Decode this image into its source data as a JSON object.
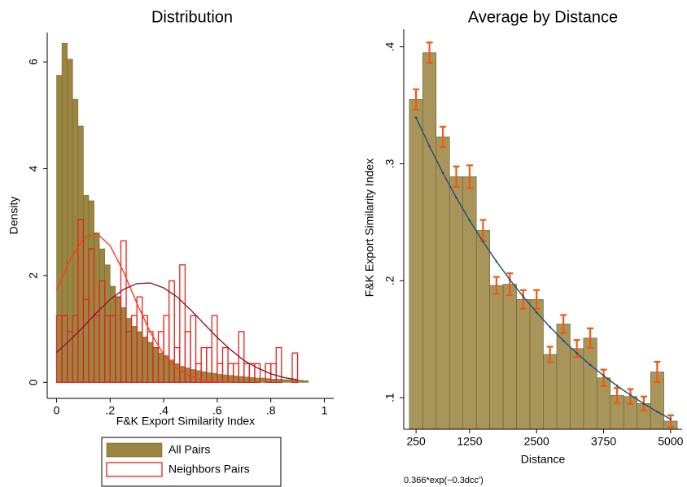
{
  "chart_data": [
    {
      "type": "histogram",
      "title": "Distribution",
      "xlabel": "F&K Export Similarity Index",
      "ylabel": "Density",
      "xlim": [
        -0.035,
        1.035
      ],
      "ylim": [
        -0.3,
        6.55
      ],
      "xticks": [
        0,
        {
          "value": 0.2,
          "label": ".2"
        },
        {
          "value": 0.4,
          "label": ".4"
        },
        {
          "value": 0.6,
          "label": ".6"
        },
        {
          "value": 0.8,
          "label": ".8"
        },
        1
      ],
      "yticks": [
        0,
        2,
        4,
        6
      ],
      "legend": "bottom",
      "series": [
        {
          "name": "All Pairs",
          "color": "#9a8642",
          "edgecolor": "#7a6a2e",
          "filled": true,
          "bins": [
            0,
            0.02,
            0.04,
            0.06,
            0.08,
            0.1,
            0.12,
            0.14,
            0.16,
            0.18,
            0.2,
            0.22,
            0.24,
            0.26,
            0.28,
            0.3,
            0.32,
            0.34,
            0.36,
            0.38,
            0.4,
            0.42,
            0.44,
            0.46,
            0.48,
            0.5,
            0.52,
            0.54,
            0.56,
            0.58,
            0.6,
            0.62,
            0.64,
            0.66,
            0.68,
            0.7,
            0.72,
            0.74,
            0.76,
            0.78,
            0.8,
            0.82,
            0.84,
            0.86,
            0.88,
            0.9,
            0.92,
            0.94
          ],
          "values": [
            5.75,
            6.35,
            6.05,
            5.3,
            4.8,
            3.5,
            3.4,
            2.8,
            2.5,
            2.2,
            1.8,
            1.6,
            1.4,
            1.2,
            1.05,
            0.95,
            0.85,
            0.75,
            0.65,
            0.55,
            0.5,
            0.42,
            0.35,
            0.3,
            0.27,
            0.24,
            0.22,
            0.2,
            0.18,
            0.17,
            0.15,
            0.14,
            0.13,
            0.12,
            0.11,
            0.1,
            0.09,
            0.08,
            0.08,
            0.07,
            0.06,
            0.06,
            0.05,
            0.05,
            0.04,
            0.04,
            0.03
          ]
        },
        {
          "name": "Neighbors Pairs",
          "color": "#e8201a",
          "edgecolor": "#e8201a",
          "filled": false,
          "bins": [
            0,
            0.02,
            0.04,
            0.06,
            0.08,
            0.1,
            0.12,
            0.14,
            0.16,
            0.18,
            0.2,
            0.22,
            0.24,
            0.26,
            0.28,
            0.3,
            0.32,
            0.34,
            0.36,
            0.38,
            0.4,
            0.42,
            0.44,
            0.46,
            0.48,
            0.5,
            0.52,
            0.54,
            0.56,
            0.58,
            0.6,
            0.62,
            0.64,
            0.66,
            0.68,
            0.7,
            0.72,
            0.74,
            0.76,
            0.78,
            0.8,
            0.82,
            0.84,
            0.86,
            0.88,
            0.9,
            0.92
          ],
          "values": [
            1.25,
            1.25,
            0.95,
            1.25,
            3.05,
            1.55,
            2.5,
            1.25,
            1.9,
            1.25,
            1.25,
            1.6,
            2.65,
            0.95,
            1.25,
            1.6,
            1.25,
            0.95,
            0.65,
            0.95,
            1.25,
            1.9,
            0.65,
            2.2,
            0.95,
            1.25,
            0.35,
            0.65,
            0.65,
            1.25,
            0.35,
            0.65,
            0.35,
            0.35,
            0.95,
            0.35,
            0.35,
            0.35,
            0,
            0.35,
            0.35,
            0.65,
            0,
            0,
            0.55,
            0
          ]
        }
      ],
      "curves": [
        {
          "color": "#ff3b1a",
          "x": [
            0,
            0.05,
            0.1,
            0.15,
            0.2,
            0.25,
            0.3,
            0.35,
            0.4,
            0.45,
            0.5,
            0.55,
            0.6,
            0.65
          ],
          "values": [
            1.72,
            2.29,
            2.69,
            2.79,
            2.56,
            2.07,
            1.48,
            0.94,
            0.52,
            0.26,
            0.11,
            0.04,
            0.01,
            0.0
          ]
        },
        {
          "color": "#8b1a2a",
          "x": [
            0,
            0.05,
            0.1,
            0.15,
            0.2,
            0.25,
            0.3,
            0.35,
            0.4,
            0.45,
            0.5,
            0.55,
            0.6,
            0.65,
            0.7,
            0.75,
            0.8,
            0.85,
            0.9
          ],
          "values": [
            0.56,
            0.79,
            1.04,
            1.31,
            1.55,
            1.74,
            1.85,
            1.86,
            1.77,
            1.6,
            1.36,
            1.1,
            0.84,
            0.61,
            0.41,
            0.27,
            0.16,
            0.09,
            0.05
          ]
        }
      ]
    },
    {
      "type": "bar",
      "title": "Average by Distance",
      "xlabel": "Distance",
      "ylabel": "F&K Export Similarity Index",
      "note": "0.366*exp(−0.3dcc')",
      "xlim": [
        20,
        5215
      ],
      "ylim": [
        0.073,
        0.415
      ],
      "xticks": [
        250,
        1250,
        2500,
        3750,
        5000
      ],
      "yticks": [
        {
          "value": 0.1,
          "label": ".1"
        },
        {
          "value": 0.2,
          "label": ".2"
        },
        {
          "value": 0.3,
          "label": ".3"
        },
        {
          "value": 0.4,
          "label": ".4"
        }
      ],
      "bar_width": 250,
      "color": "#a8955a",
      "edgecolor": "#6b5e2b",
      "error_color": "#f05a14",
      "x": [
        250,
        500,
        750,
        1000,
        1250,
        1500,
        1750,
        2000,
        2250,
        2500,
        2750,
        3000,
        3250,
        3500,
        3750,
        4000,
        4250,
        4500,
        4750,
        5000
      ],
      "values": [
        0.355,
        0.395,
        0.323,
        0.289,
        0.289,
        0.243,
        0.196,
        0.197,
        0.184,
        0.184,
        0.137,
        0.163,
        0.142,
        0.151,
        0.117,
        0.102,
        0.101,
        0.095,
        0.122,
        0.08
      ],
      "errors": [
        0.0087,
        0.0087,
        0.0087,
        0.0087,
        0.0097,
        0.009,
        0.0073,
        0.0094,
        0.008,
        0.008,
        0.0066,
        0.0077,
        0.0073,
        0.0083,
        0.007,
        0.0063,
        0.0063,
        0.006,
        0.0087,
        0.005
      ],
      "fit": {
        "color": "#1f4e79",
        "x": [
          250,
          500,
          750,
          1000,
          1250,
          1500,
          1750,
          2000,
          2250,
          2500,
          2750,
          3000,
          3250,
          3500,
          3750,
          4000,
          4250,
          4500,
          4750,
          5000
        ],
        "values": [
          0.3395,
          0.315,
          0.2922,
          0.2711,
          0.2515,
          0.2334,
          0.2165,
          0.2009,
          0.1864,
          0.1729,
          0.1604,
          0.1488,
          0.1381,
          0.1281,
          0.1188,
          0.1102,
          0.1023,
          0.0949,
          0.088,
          0.0817
        ]
      }
    }
  ]
}
